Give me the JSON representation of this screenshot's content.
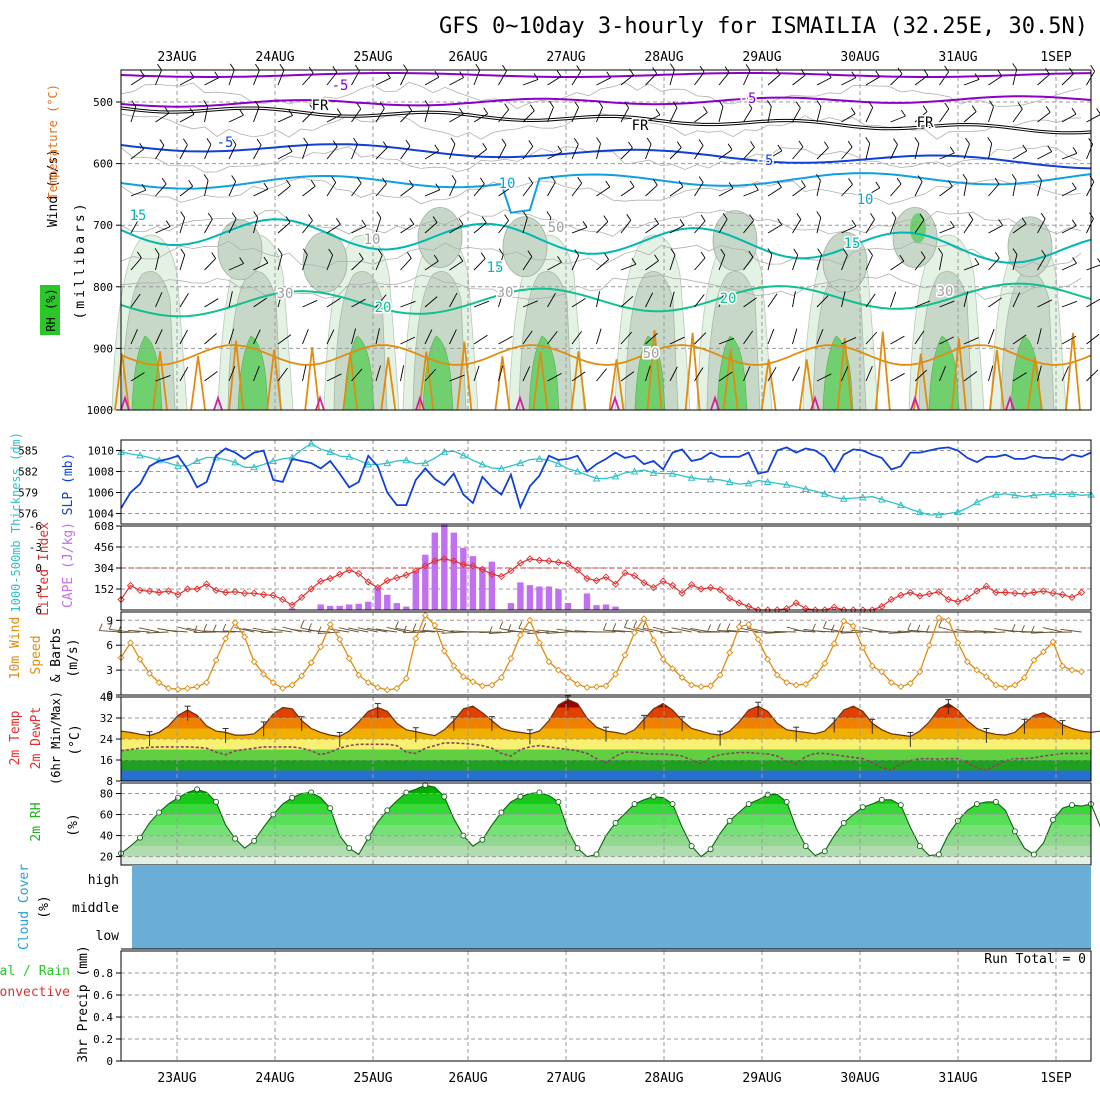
{
  "title": "GFS 0~10day 3-hourly for ISMAILIA (32.25E, 30.5N)",
  "dates": [
    "23AUG",
    "24AUG",
    "25AUG",
    "26AUG",
    "27AUG",
    "28AUG",
    "29AUG",
    "30AUG",
    "31AUG",
    "1SEP"
  ],
  "colors": {
    "purple": "#8b00c8",
    "blue": "#1040d8",
    "cyan": "#10a0e0",
    "teal": "#00b8b0",
    "sea": "#10c090",
    "orange": "#e08c10",
    "red": "#e03030",
    "cape": "#c070f0",
    "rhgreen": "#28c828",
    "cloud": "#6aaed8",
    "thick": "#30c0c8"
  },
  "panel_upper": {
    "label_wind": "Wind (m/s)",
    "label_temp": "Temperature (°C)",
    "label_rh": "RH (%)",
    "label_mb": "(millibars)",
    "yticks": [
      "500",
      "600",
      "700",
      "800",
      "900",
      "1000"
    ],
    "contour_labels": [
      {
        "text": "-5",
        "color": "purple"
      },
      {
        "text": "-5",
        "color": "purple"
      },
      {
        "text": "FR",
        "color": "black"
      },
      {
        "text": "FR",
        "color": "black"
      },
      {
        "text": "FR",
        "color": "black"
      },
      {
        "text": "-5",
        "color": "blue"
      },
      {
        "text": "-5",
        "color": "blue"
      },
      {
        "text": "10",
        "color": "cyan"
      },
      {
        "text": "10",
        "color": "cyan"
      },
      {
        "text": "15",
        "color": "teal"
      },
      {
        "text": "15",
        "color": "teal"
      },
      {
        "text": "15",
        "color": "teal"
      },
      {
        "text": "20",
        "color": "sea"
      },
      {
        "text": "20",
        "color": "sea"
      },
      {
        "text": "30",
        "color": "gray"
      },
      {
        "text": "30",
        "color": "gray"
      },
      {
        "text": "30",
        "color": "gray"
      },
      {
        "text": "10",
        "color": "gray"
      },
      {
        "text": "10",
        "color": "gray"
      },
      {
        "text": "50",
        "color": "gray"
      },
      {
        "text": "50",
        "color": "gray"
      }
    ]
  },
  "panel_slp": {
    "label_thickness": "1000-500mb Thickness (dm)",
    "label_slp": "SLP (mb)",
    "left_ticks": [
      "585",
      "582",
      "579",
      "576"
    ],
    "right_ticks": [
      "1010",
      "1008",
      "1006",
      "1004"
    ]
  },
  "panel_cape": {
    "label_li": "Lifted Index",
    "label_cape": "CAPE (J/kg)",
    "left_ticks": [
      "-6",
      "-3",
      "0",
      "3",
      "6"
    ],
    "right_ticks": [
      "608",
      "456",
      "304",
      "152"
    ]
  },
  "panel_wind": {
    "label_wind": "10m Wind",
    "label_speed": "Speed",
    "label_barbs": "& Barbs",
    "label_unit": "(m/s)",
    "ticks": [
      "9",
      "6",
      "3",
      "0"
    ]
  },
  "panel_temp": {
    "label_temp": "2m Temp",
    "label_dew": "2m DewPt",
    "label_minmax": "(6hr Min/Max)",
    "label_unit": "(°C)",
    "ticks": [
      "40",
      "32",
      "24",
      "16",
      "8"
    ]
  },
  "panel_rh": {
    "label_rh": "2m RH",
    "label_unit": "(%)",
    "ticks": [
      "80",
      "60",
      "40",
      "20"
    ]
  },
  "panel_cloud": {
    "label_cloud": "Cloud Cover",
    "label_unit": "(%)",
    "levels": [
      "high",
      "middle",
      "low"
    ]
  },
  "panel_precip": {
    "label_total": "Total / Rain",
    "label_conv": "Convective",
    "label_precip": "3hr Precip (mm)",
    "run_total": "Run Total = 0",
    "ticks": [
      "0.8",
      "0.6",
      "0.4",
      "0.2",
      "0"
    ]
  },
  "chart_data": [
    {
      "type": "line",
      "title": "SLP (mb) and 1000-500mb Thickness (dm)",
      "x_unit": "3-hourly time steps from 22AUG ~12Z",
      "series": [
        {
          "name": "SLP (mb)",
          "ylim": [
            1003,
            1011
          ],
          "values": [
            1004.5,
            1006,
            1006.8,
            1008.5,
            1009,
            1009.2,
            1009.5,
            1008.2,
            1006.5,
            1007,
            1009.5,
            1010.2,
            1009.8,
            1009.2,
            1009.8,
            1010,
            1007.2,
            1007,
            1009.2,
            1009,
            1008.8,
            1008.3,
            1009,
            1007.8,
            1006.5,
            1007,
            1009.5,
            1008.5,
            1006,
            1004.8,
            1004.8,
            1007.2,
            1008.3,
            1007.3,
            1006.7,
            1007.8,
            1005.8,
            1005,
            1007.5,
            1006.5,
            1005.8,
            1007.7,
            1004.6,
            1006.6,
            1007.6,
            1009.5,
            1009.1,
            1009.2,
            1009.5,
            1008,
            1008.7,
            1009.2,
            1009.8,
            1009.3,
            1009.5,
            1008.7,
            1009,
            1008.2,
            1009.8,
            1010.1,
            1009,
            1009.2,
            1009.8,
            1009.4,
            1009.4,
            1009.4,
            1009.8,
            1007.8,
            1008,
            1010,
            1010.3,
            1009.8,
            1010.2,
            1010,
            1009.4,
            1008,
            1009.6,
            1010.1,
            1010,
            1009.6,
            1009.3,
            1008.2,
            1008.5,
            1009.8,
            1009.8,
            1010,
            1010.2,
            1010.3,
            1010,
            1009.3,
            1008.9,
            1009.4,
            1009.4,
            1009.6,
            1009.2,
            1009.2,
            1009.5,
            1009.3,
            1009.3,
            1009.1,
            1009.6,
            1009.4,
            1009.8
          ]
        },
        {
          "name": "1000-500mb Thickness (dm)",
          "ylim": [
            574.5,
            586.5
          ],
          "values": [
            584.8,
            584.5,
            584.3,
            584,
            583.6,
            583.2,
            582.8,
            582.8,
            583.5,
            584,
            584,
            583.7,
            583.3,
            582.6,
            582.6,
            583,
            583.5,
            583.8,
            584,
            585.1,
            586,
            585.2,
            584.8,
            584.2,
            584.1,
            583.6,
            583,
            583,
            583.2,
            583.5,
            583.6,
            583.1,
            583.2,
            583.9,
            584.8,
            584.9,
            584.3,
            583.6,
            583,
            582.5,
            582.4,
            582.8,
            583.2,
            583.7,
            583.8,
            583.6,
            583.1,
            582.4,
            582,
            581.5,
            581,
            581,
            581.3,
            581.8,
            582,
            582.2,
            581.8,
            581.7,
            581.7,
            581.4,
            581.1,
            580.9,
            580.9,
            580.8,
            580.5,
            580.2,
            580.3,
            580.7,
            580.5,
            580.3,
            580.1,
            579.8,
            579.5,
            579.2,
            578.8,
            578.3,
            578.1,
            578.2,
            578.3,
            578.4,
            578,
            577.6,
            577.2,
            576.6,
            576.2,
            575.8,
            575.8,
            576,
            576.2,
            576.8,
            577.6,
            578.2,
            578.7,
            578.8,
            578.6,
            578.4,
            578.6,
            578.7,
            578.8,
            578.7,
            578.8,
            578.6,
            578.7
          ]
        }
      ]
    },
    {
      "type": "bar",
      "title": "CAPE (J/kg) and Lifted Index",
      "series": [
        {
          "name": "CAPE (J/kg)",
          "ylim": [
            0,
            608
          ],
          "values": [
            0,
            0,
            0,
            0,
            0,
            0,
            0,
            0,
            0,
            0,
            0,
            0,
            0,
            0,
            0,
            0,
            0,
            0,
            12,
            0,
            0,
            40,
            30,
            30,
            40,
            45,
            60,
            160,
            110,
            50,
            25,
            280,
            400,
            560,
            620,
            560,
            450,
            390,
            310,
            350,
            0,
            50,
            200,
            180,
            170,
            170,
            150,
            50,
            0,
            120,
            35,
            40,
            25,
            0,
            0,
            0,
            0,
            0,
            0,
            0,
            0,
            0,
            0,
            0,
            0,
            0,
            0,
            0,
            0,
            0,
            0,
            0,
            0,
            0,
            0,
            0,
            0,
            0,
            0,
            0,
            0,
            0,
            0,
            0,
            0,
            0,
            0,
            0,
            0,
            0,
            0,
            0,
            0,
            0,
            0,
            0,
            0,
            0,
            0,
            0,
            0,
            0,
            0
          ]
        },
        {
          "name": "Lifted Index",
          "ylim": [
            -6,
            6
          ],
          "values": [
            4.5,
            2.5,
            3.2,
            3.3,
            3.5,
            3.3,
            3.8,
            3,
            3,
            2.3,
            3.2,
            3.5,
            3.4,
            3.6,
            3.6,
            3.8,
            3.9,
            4.5,
            5.3,
            4.2,
            3,
            1.9,
            1.5,
            0.9,
            0.3,
            0.8,
            2,
            2.8,
            1.8,
            1.4,
            1,
            0.4,
            -0.3,
            -1,
            -1.3,
            -1,
            -0.5,
            -0.3,
            0.2,
            0.9,
            1.2,
            0.4,
            -0.7,
            -1.3,
            -1.1,
            -1,
            -0.8,
            -0.6,
            0.3,
            1.5,
            1.8,
            1.3,
            2.3,
            0.7,
            1.1,
            2.1,
            2.8,
            1.9,
            2.5,
            3.6,
            2.4,
            3,
            2.8,
            3.1,
            4.3,
            5,
            5.5,
            6,
            6.5,
            6.3,
            5.8,
            5,
            5.8,
            6,
            6,
            5.6,
            6,
            6,
            6,
            6.2,
            5.5,
            4.5,
            3.9,
            3.5,
            4,
            3.7,
            3.4,
            4.5,
            4.8,
            4.3,
            3.3,
            2.6,
            3.5,
            3.5,
            3.6,
            3.7,
            3.5,
            3.3,
            3.6,
            3.8,
            4.2,
            3.5
          ]
        }
      ]
    },
    {
      "type": "line",
      "title": "10m Wind Speed & Barbs (m/s)",
      "ylim": [
        0,
        10
      ],
      "series": [
        {
          "name": "10m Wind Speed (m/s)",
          "values": [
            4.5,
            6.3,
            4.3,
            2.6,
            1.5,
            0.8,
            0.7,
            0.8,
            1,
            1.5,
            4.2,
            6.8,
            8.7,
            7,
            4,
            2.5,
            1.5,
            0.8,
            1.2,
            2.3,
            3.9,
            5.8,
            8.5,
            6.7,
            4.4,
            2.4,
            1.5,
            0.9,
            0.6,
            0.8,
            2,
            6.8,
            9.6,
            8.4,
            5.3,
            3.5,
            2.2,
            1.6,
            1.1,
            1.2,
            2.1,
            4.4,
            7.2,
            9,
            6.3,
            4,
            3,
            2.1,
            1.3,
            0.9,
            1,
            1.1,
            2.5,
            4.8,
            7.5,
            9.2,
            6.6,
            4.3,
            3.2,
            2.1,
            1.2,
            1,
            1.1,
            2.4,
            5.1,
            8.2,
            8.5,
            6.7,
            4.3,
            2.4,
            1.5,
            1.2,
            1.3,
            2.3,
            3.8,
            6.2,
            8.9,
            8.3,
            5.7,
            3.5,
            2.8,
            1.5,
            1,
            1.4,
            2.8,
            6,
            9.3,
            9,
            6.3,
            4,
            3,
            2.2,
            1.2,
            0.9,
            1.2,
            2.1,
            4.2,
            5.2,
            6.4,
            3.5,
            3,
            2.8
          ]
        }
      ]
    },
    {
      "type": "area",
      "title": "2m Temp, 2m DewPt (°C) and 6hr Min/Max",
      "ylim": [
        8,
        40
      ],
      "series": [
        {
          "name": "2m Temp (°C)",
          "values": [
            27,
            26.5,
            25.8,
            25.3,
            26.5,
            29,
            33,
            35,
            33,
            29,
            27,
            26.5,
            25.5,
            25.5,
            26,
            29,
            33.5,
            36,
            35.5,
            31,
            28,
            26.5,
            25.5,
            25,
            27,
            30.5,
            34.5,
            36,
            34.5,
            30,
            27.5,
            26.8,
            26,
            25.3,
            27.5,
            31,
            35.5,
            36.5,
            34,
            31,
            28,
            27,
            26.5,
            26,
            27,
            31,
            37,
            39,
            37.5,
            32,
            28.5,
            27,
            26.5,
            25.8,
            27.5,
            31.5,
            35.5,
            37.5,
            35,
            31,
            28,
            27,
            26,
            25.5,
            27,
            30.5,
            35,
            36.5,
            34.5,
            30,
            27.5,
            27,
            26.5,
            26,
            27,
            30.5,
            35,
            36.5,
            34.5,
            30,
            27.5,
            26,
            25.5,
            25,
            27,
            30.5,
            35.5,
            37.5,
            35,
            31,
            28,
            26.5,
            25.8,
            25.5,
            26.5,
            30,
            33,
            34,
            32,
            29.5,
            28,
            27,
            26.5,
            27
          ]
        },
        {
          "name": "2m DewPt (°C)",
          "values": [
            19.5,
            20,
            20.5,
            20.8,
            21,
            21,
            21,
            21,
            20.8,
            20.5,
            19,
            18,
            19.5,
            20,
            20.5,
            21,
            21,
            21,
            21,
            20.5,
            19.5,
            18,
            19,
            20.5,
            21.5,
            22,
            22,
            22,
            22,
            21.5,
            19,
            18.5,
            20.5,
            21.5,
            22.5,
            22.5,
            22.3,
            22,
            21.5,
            20.5,
            18.5,
            17.5,
            20,
            21,
            21.5,
            21,
            20.5,
            20,
            19.5,
            18.5,
            16.5,
            14.8,
            17.5,
            19,
            19,
            18.5,
            18.3,
            18.3,
            18,
            17.5,
            16,
            14.5,
            17,
            18,
            18.5,
            18.8,
            18.8,
            18.5,
            18.3,
            17.5,
            15.5,
            14.5,
            17.3,
            18.5,
            18.5,
            18,
            17.5,
            17,
            16.5,
            15,
            13,
            12,
            14.5,
            15.8,
            16.5,
            16.5,
            16.3,
            16.5,
            16.5,
            15,
            13,
            12,
            14,
            15.8,
            16.5,
            16.5,
            16.8,
            17.5,
            18,
            18.5,
            18.5,
            18.5,
            18.5
          ]
        }
      ]
    },
    {
      "type": "area",
      "title": "2m RH (%)",
      "ylim": [
        12,
        90
      ],
      "series": [
        {
          "name": "2m RH (%)",
          "values": [
            23,
            30,
            38,
            52,
            62,
            70,
            76,
            81,
            84,
            81,
            72,
            50,
            37,
            28,
            35,
            48,
            60,
            70,
            76,
            80,
            81,
            76,
            66,
            40,
            28,
            22,
            38,
            53,
            64,
            73,
            81,
            84,
            88,
            86,
            77,
            56,
            40,
            30,
            36,
            50,
            62,
            72,
            77,
            80,
            81,
            78,
            72,
            45,
            28,
            20,
            22,
            40,
            52,
            61,
            70,
            74,
            77,
            76,
            70,
            48,
            30,
            20,
            27,
            42,
            54,
            62,
            70,
            74,
            79,
            79,
            72,
            47,
            30,
            21,
            25,
            40,
            52,
            60,
            67,
            70,
            74,
            74,
            69,
            48,
            30,
            21,
            22,
            41,
            54,
            64,
            70,
            72,
            72,
            64,
            44,
            28,
            22,
            33,
            55,
            66,
            69,
            68,
            70,
            48
          ]
        }
      ]
    },
    {
      "type": "heatmap",
      "title": "Cloud Cover (%)",
      "levels": [
        "high",
        "middle",
        "low"
      ],
      "note_values": "uniform fill across the period"
    },
    {
      "type": "line",
      "title": "3hr Precip (mm) — Total / Rain, Convective",
      "ylim": [
        0,
        1.0
      ],
      "series": [
        {
          "name": "Total / Rain",
          "values": []
        },
        {
          "name": "Convective",
          "values": []
        }
      ]
    }
  ]
}
